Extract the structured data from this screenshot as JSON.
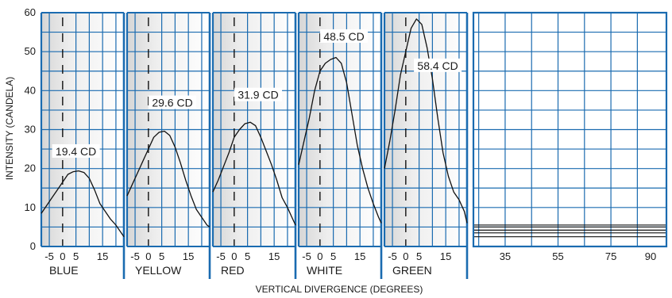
{
  "chart_data": {
    "type": "line",
    "ylabel": "INTENSITY (CANDELA)",
    "xlabel": "VERTICAL DIVERGENCE (DEGREES)",
    "ylim": [
      0,
      60
    ],
    "y_ticks": [
      0,
      10,
      20,
      30,
      40,
      50,
      60
    ],
    "x_ticks": [
      "-5",
      "0",
      "5",
      "15"
    ],
    "x_range": [
      -8,
      23
    ],
    "tail_ticks": [
      "35",
      "55",
      "75",
      "90"
    ],
    "tail_range": [
      23,
      96
    ],
    "grid": true,
    "series": [
      {
        "name": "BLUE",
        "peak_label": "19.4 CD",
        "peak_label_at": [
          5,
          24
        ],
        "x": [
          -8,
          -6,
          -4,
          -2,
          0,
          2,
          4,
          6,
          8,
          10,
          12,
          14,
          16,
          18,
          20,
          22,
          23
        ],
        "y": [
          8.5,
          10.5,
          12.5,
          14.5,
          16.5,
          18.5,
          19.2,
          19.4,
          19,
          17.5,
          14.5,
          11,
          9,
          7,
          5.5,
          3.5,
          2.5
        ]
      },
      {
        "name": "YELLOW",
        "peak_label": "29.6 CD",
        "peak_label_at": [
          9,
          36.5
        ],
        "x": [
          -8,
          -6,
          -4,
          -2,
          0,
          2,
          4,
          6,
          8,
          10,
          12,
          14,
          16,
          18,
          20,
          22,
          23
        ],
        "y": [
          13,
          16,
          19,
          22,
          25,
          28,
          29.3,
          29.6,
          28.5,
          25.5,
          21.5,
          17,
          13,
          9.5,
          7.5,
          5.5,
          5
        ]
      },
      {
        "name": "RED",
        "peak_label": "31.9 CD",
        "peak_label_at": [
          9,
          38.5
        ],
        "x": [
          -8,
          -6,
          -4,
          -2,
          0,
          2,
          4,
          6,
          8,
          10,
          12,
          14,
          16,
          18,
          20,
          22,
          23
        ],
        "y": [
          14,
          17,
          20.5,
          24,
          28,
          30,
          31.5,
          31.9,
          31,
          28,
          24.5,
          21,
          17,
          12.5,
          10,
          7,
          5.5
        ]
      },
      {
        "name": "WHITE",
        "peak_label": "48.5 CD",
        "peak_label_at": [
          9,
          53.5
        ],
        "x": [
          -8,
          -6,
          -4,
          -2,
          0,
          2,
          4,
          6,
          8,
          10,
          12,
          14,
          16,
          18,
          20,
          22,
          23
        ],
        "y": [
          21,
          27,
          33,
          40,
          45,
          47,
          48,
          48.5,
          47,
          42,
          34,
          26,
          20,
          15,
          11,
          7.5,
          6
        ]
      },
      {
        "name": "GREEN",
        "peak_label": "58.4 CD",
        "peak_label_at": [
          12,
          46
        ],
        "x": [
          -8,
          -6,
          -4,
          -2,
          0,
          2,
          4,
          6,
          8,
          10,
          12,
          14,
          16,
          18,
          20,
          22,
          23
        ],
        "y": [
          20,
          27,
          35,
          44,
          50,
          56,
          58.4,
          57,
          51,
          43,
          33,
          24,
          18,
          14,
          12,
          9,
          6
        ]
      }
    ],
    "tail_lines": [
      2.5,
      3.5,
      4.2,
      5,
      5.5
    ]
  },
  "colors": {
    "frame": "#1a6bb0",
    "grid": "#1a6bb0",
    "curve": "#111111",
    "shade": "#dcdcdc"
  }
}
